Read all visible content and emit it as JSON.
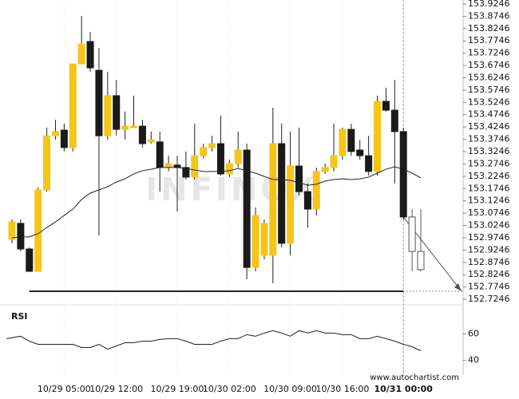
{
  "chart_data": {
    "type": "candlestick",
    "watermark": "INFINOX",
    "footer": "www.autochartist.com",
    "categories": [
      null,
      null,
      null,
      null,
      null,
      null,
      "10/29 05:00",
      null,
      null,
      null,
      null,
      null,
      "10/29 12:00",
      null,
      null,
      null,
      null,
      null,
      null,
      "10/29 19:00",
      null,
      null,
      null,
      null,
      null,
      "10/30 02:00",
      null,
      null,
      null,
      null,
      null,
      null,
      "10/30 09:00",
      null,
      null,
      null,
      null,
      null,
      "10/30 16:00",
      null,
      null,
      null,
      null,
      null,
      null,
      "10/31 00:00",
      null,
      null
    ],
    "open": [
      152.968,
      153.033,
      152.929,
      152.838,
      153.169,
      153.389,
      153.412,
      153.341,
      153.681,
      153.772,
      153.655,
      153.389,
      153.552,
      153.415,
      153.422,
      153.428,
      153.364,
      153.364,
      153.26,
      153.27,
      153.26,
      153.221,
      153.308,
      153.341,
      153.357,
      153.234,
      153.276,
      153.331,
      152.854,
      152.903,
      152.903,
      153.357,
      152.952,
      153.266,
      153.162,
      153.091,
      153.244,
      153.26,
      153.308,
      153.415,
      153.331,
      153.308,
      153.244,
      153.529,
      153.493,
      153.406,
      153.059,
      152.919
    ],
    "high": [
      153.049,
      153.049,
      152.935,
      153.179,
      153.422,
      153.454,
      153.438,
      153.681,
      153.876,
      153.811,
      153.746,
      153.649,
      153.616,
      153.487,
      153.552,
      153.454,
      153.406,
      153.406,
      153.308,
      153.308,
      153.325,
      153.438,
      153.357,
      153.389,
      153.471,
      153.292,
      153.406,
      153.357,
      153.098,
      153.049,
      153.503,
      153.438,
      153.406,
      153.422,
      153.195,
      153.26,
      153.276,
      153.438,
      153.422,
      153.438,
      153.373,
      153.389,
      153.552,
      153.584,
      153.616,
      153.422,
      153.091,
      153.091
    ],
    "low": [
      152.952,
      152.919,
      152.838,
      152.838,
      153.162,
      153.373,
      153.325,
      153.325,
      153.681,
      153.649,
      152.984,
      153.373,
      153.389,
      153.373,
      153.422,
      153.341,
      153.357,
      153.162,
      153.244,
      153.081,
      153.211,
      153.211,
      153.298,
      153.325,
      153.227,
      153.221,
      153.26,
      152.806,
      152.838,
      152.887,
      152.79,
      152.935,
      152.903,
      153.146,
      153.016,
      153.065,
      153.234,
      153.244,
      153.292,
      153.308,
      153.292,
      153.227,
      153.227,
      153.487,
      153.195,
      153.049,
      152.838,
      152.838
    ],
    "close": [
      153.039,
      152.929,
      152.838,
      153.169,
      153.389,
      153.406,
      153.341,
      153.681,
      153.762,
      153.665,
      153.389,
      153.552,
      153.415,
      153.428,
      153.428,
      153.357,
      153.373,
      153.26,
      153.276,
      153.26,
      153.221,
      153.308,
      153.341,
      153.357,
      153.234,
      153.276,
      153.331,
      152.854,
      153.065,
      153.033,
      153.357,
      152.952,
      153.266,
      153.162,
      153.091,
      153.244,
      153.26,
      153.308,
      153.415,
      153.325,
      153.308,
      153.244,
      153.529,
      153.493,
      153.406,
      153.059,
      152.919,
      152.845
    ],
    "colors": {
      "up": "#f5c518",
      "down": "#1a1a1a"
    },
    "moving_average": [
      152.974,
      152.978,
      152.978,
      152.991,
      153.016,
      153.039,
      153.065,
      153.091,
      153.13,
      153.156,
      153.169,
      153.182,
      153.201,
      153.214,
      153.234,
      153.247,
      153.253,
      153.26,
      153.26,
      153.26,
      153.256,
      153.25,
      153.244,
      153.244,
      153.244,
      153.247,
      153.256,
      153.247,
      153.237,
      153.224,
      153.211,
      153.211,
      153.208,
      153.198,
      153.188,
      153.192,
      153.205,
      153.211,
      153.214,
      153.211,
      153.214,
      153.221,
      153.237,
      153.253,
      153.263,
      153.253,
      153.237,
      153.218
    ],
    "support_level": 152.757,
    "ylim": [
      152.7084,
      153.9408
    ],
    "yticks": [
      152.7246,
      152.7746,
      152.8246,
      152.8746,
      152.9246,
      152.9746,
      153.0246,
      153.0746,
      153.1246,
      153.1746,
      153.2246,
      153.2746,
      153.3246,
      153.3746,
      153.4246,
      153.4746,
      153.5246,
      153.5746,
      153.6246,
      153.6746,
      153.7246,
      153.7746,
      153.8246,
      153.8746,
      153.9246
    ],
    "rsi": {
      "label": "RSI",
      "values": [
        56.4,
        58.2,
        54.5,
        52.1,
        52.1,
        52.1,
        52.1,
        52.1,
        49.7,
        49.7,
        52.1,
        48.5,
        50.9,
        53.3,
        53.3,
        54.5,
        54.5,
        55.8,
        56.4,
        56.4,
        54.5,
        52.1,
        52.1,
        52.1,
        54.5,
        56.4,
        56.4,
        59.4,
        58.2,
        60.6,
        62.4,
        60.6,
        58.2,
        62.4,
        60.6,
        62.4,
        60.6,
        60.6,
        59.4,
        59.4,
        56.4,
        56.4,
        58.2,
        56.4,
        54.5,
        52.1,
        50.3,
        47.3
      ],
      "ylim": [
        32,
        80
      ],
      "yticks": [
        40,
        60
      ]
    }
  }
}
